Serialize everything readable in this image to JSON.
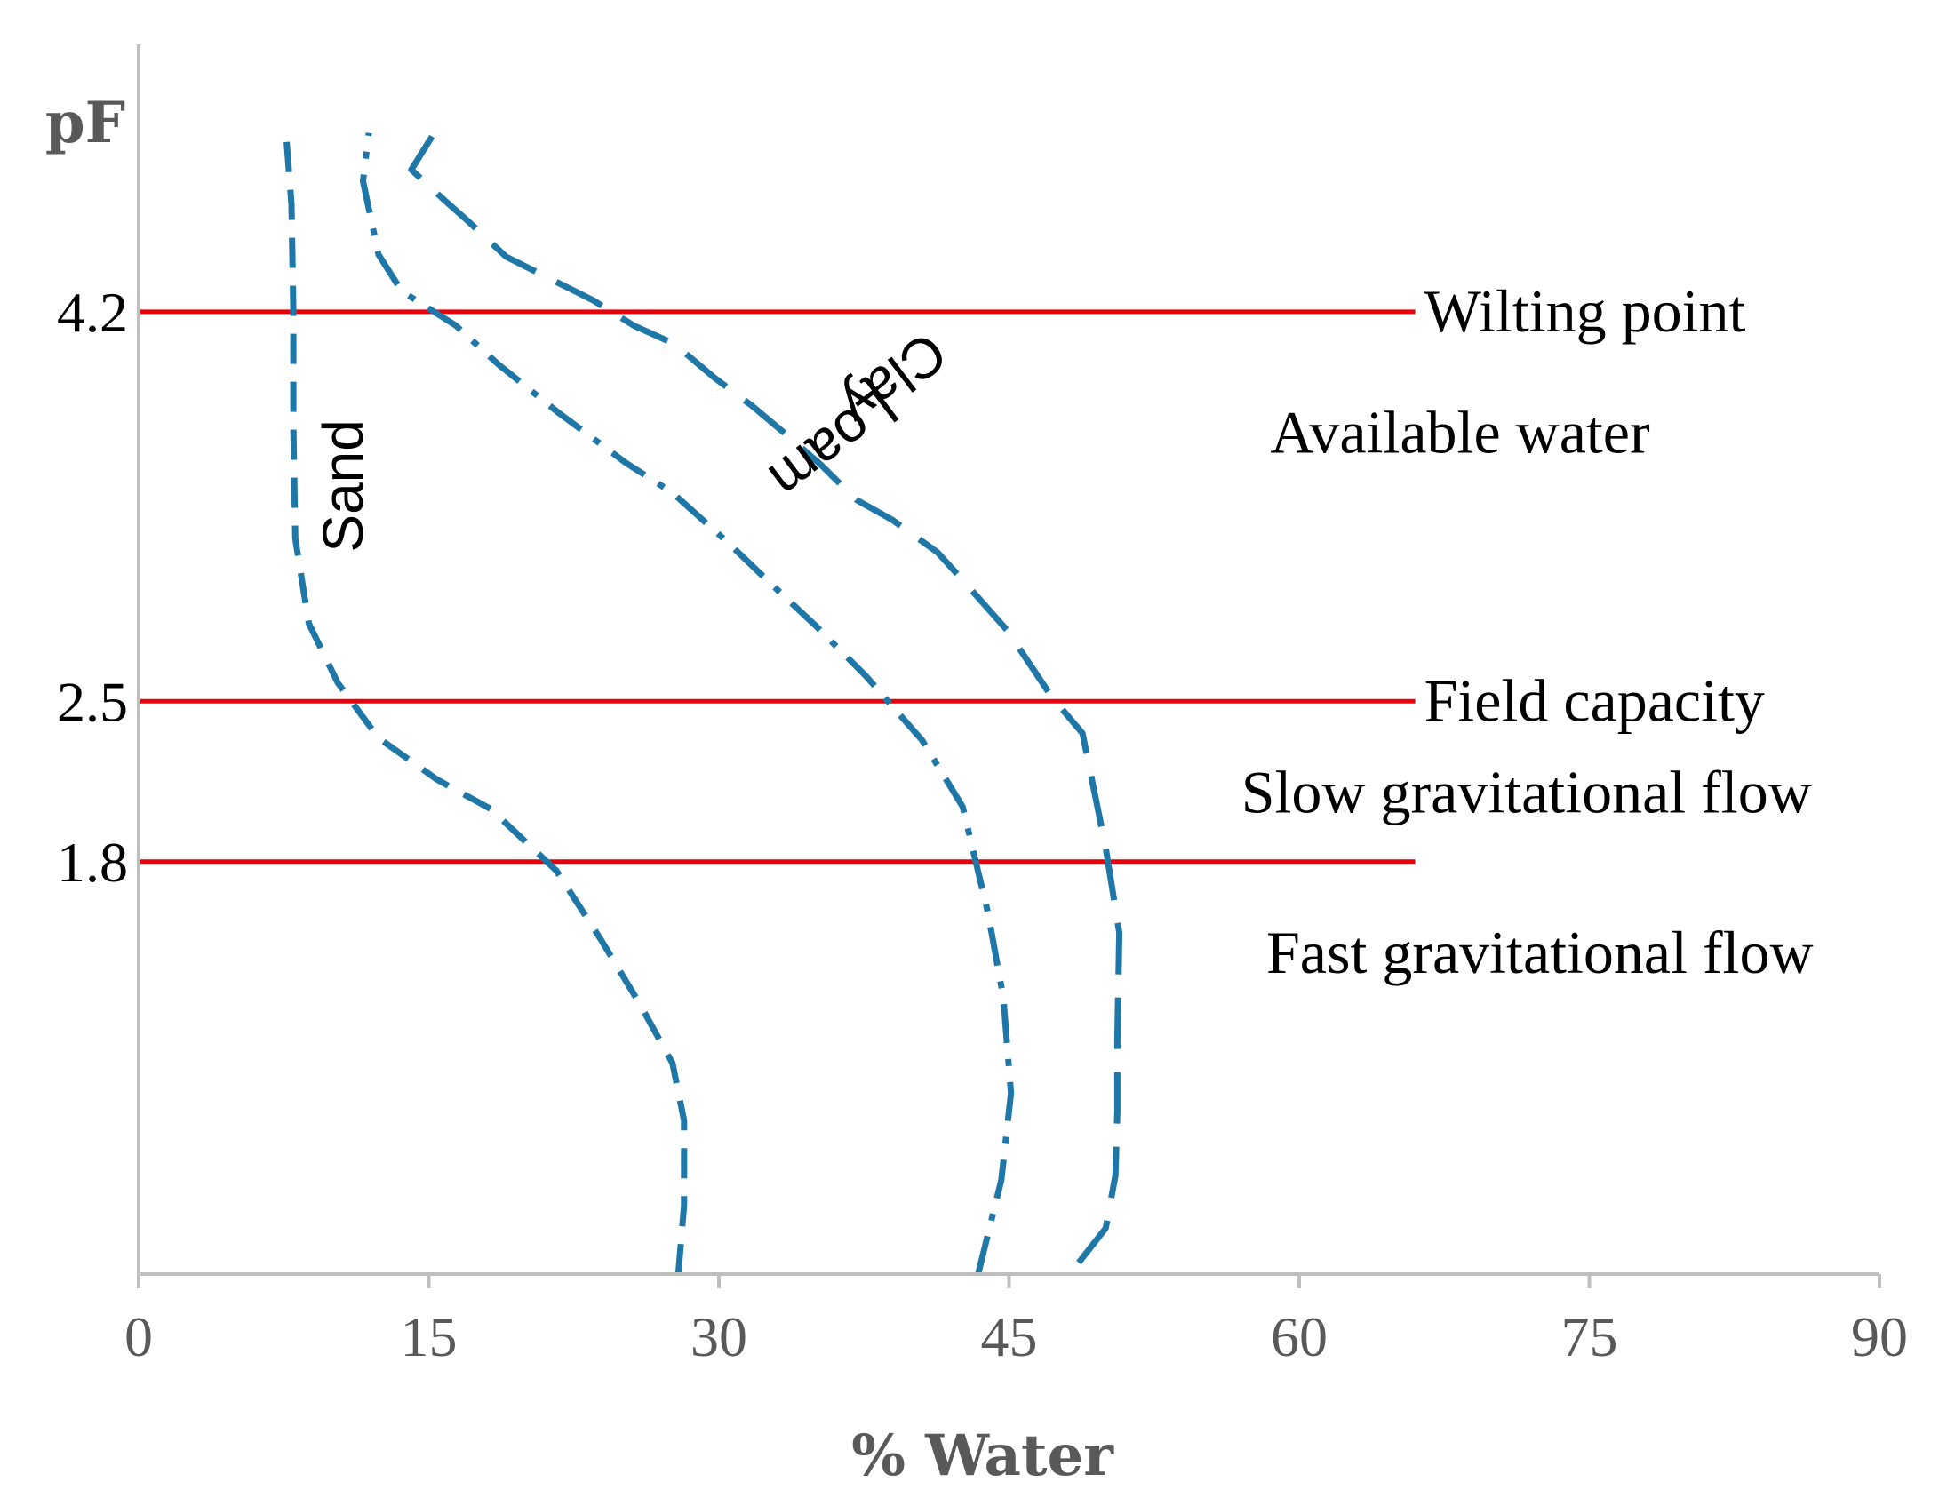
{
  "chart_data": {
    "type": "line",
    "title": "",
    "xlabel": "% Water",
    "ylabel": "pF",
    "xlim": [
      0,
      90
    ],
    "ylim": [
      0,
      5.2
    ],
    "xticks": [
      0,
      15,
      30,
      45,
      60,
      75,
      90
    ],
    "yticks": [
      1.8,
      2.5,
      4.2
    ],
    "grid": false,
    "colors": {
      "curve": "#1f77a8",
      "threshold": "#e8000b",
      "axis": "#bfbfbf"
    },
    "thresholds": [
      {
        "label": "Wilting point",
        "pF": 4.2,
        "x_end": 66
      },
      {
        "label": "Field capacity",
        "pF": 2.5,
        "x_end": 66
      },
      {
        "label": "",
        "pF": 1.8,
        "x_end": 66
      }
    ],
    "zones": [
      {
        "label": "Available water",
        "pF": 3.67,
        "x": 58.5
      },
      {
        "label": "Slow gravitational flow",
        "pF": 2.1,
        "x": 57
      },
      {
        "label": "Fast gravitational flow",
        "pF": 1.4,
        "x": 58.3
      }
    ],
    "series": [
      {
        "name": "Sand",
        "dash": "dash",
        "label_pos": {
          "x": 10.8,
          "pF": 3.44,
          "rotate": -90
        },
        "points": [
          [
            27.9,
            0.0
          ],
          [
            28.2,
            0.3
          ],
          [
            28.2,
            0.67
          ],
          [
            27.6,
            0.92
          ],
          [
            25.9,
            1.18
          ],
          [
            23.9,
            1.46
          ],
          [
            21.6,
            1.76
          ],
          [
            18.2,
            2.03
          ],
          [
            15.4,
            2.16
          ],
          [
            12.4,
            2.34
          ],
          [
            10.3,
            2.58
          ],
          [
            8.8,
            2.84
          ],
          [
            8.1,
            3.21
          ],
          [
            8.0,
            3.7
          ],
          [
            8.0,
            4.2
          ],
          [
            7.9,
            4.67
          ],
          [
            7.6,
            5.0
          ]
        ]
      },
      {
        "name": "Loam",
        "dash": "dashdot",
        "label_pos": {
          "x": 35.8,
          "pF": 3.64,
          "rotate": 143
        },
        "points": [
          [
            43.4,
            0.0
          ],
          [
            44.6,
            0.41
          ],
          [
            45.1,
            0.79
          ],
          [
            44.7,
            1.21
          ],
          [
            43.9,
            1.58
          ],
          [
            42.6,
            2.04
          ],
          [
            40.5,
            2.33
          ],
          [
            37.6,
            2.61
          ],
          [
            35.0,
            2.83
          ],
          [
            32.6,
            3.02
          ],
          [
            30.5,
            3.19
          ],
          [
            27.6,
            3.41
          ],
          [
            25.2,
            3.54
          ],
          [
            21.7,
            3.76
          ],
          [
            18.6,
            3.97
          ],
          [
            16.4,
            4.14
          ],
          [
            13.6,
            4.29
          ],
          [
            12.4,
            4.45
          ],
          [
            11.6,
            4.77
          ],
          [
            11.9,
            4.98
          ]
        ]
      },
      {
        "name": "Clay",
        "dash": "longdash",
        "label_pos": {
          "x": 38.9,
          "pF": 3.92,
          "rotate": 143
        },
        "points": [
          [
            48.6,
            0.05
          ],
          [
            50.0,
            0.2
          ],
          [
            50.5,
            0.43
          ],
          [
            50.6,
            0.71
          ],
          [
            50.6,
            1.02
          ],
          [
            50.7,
            1.49
          ],
          [
            50.0,
            1.86
          ],
          [
            49.4,
            2.11
          ],
          [
            48.8,
            2.36
          ],
          [
            47.2,
            2.52
          ],
          [
            44.9,
            2.81
          ],
          [
            42.7,
            3.02
          ],
          [
            41.3,
            3.15
          ],
          [
            39.0,
            3.29
          ],
          [
            37.1,
            3.38
          ],
          [
            35.3,
            3.53
          ],
          [
            33.4,
            3.67
          ],
          [
            31.7,
            3.79
          ],
          [
            29.8,
            3.91
          ],
          [
            27.7,
            4.06
          ],
          [
            25.6,
            4.14
          ],
          [
            23.5,
            4.25
          ],
          [
            19.0,
            4.44
          ],
          [
            17.1,
            4.59
          ],
          [
            15.9,
            4.68
          ],
          [
            14.1,
            4.82
          ],
          [
            15.5,
            5.01
          ]
        ]
      }
    ]
  }
}
